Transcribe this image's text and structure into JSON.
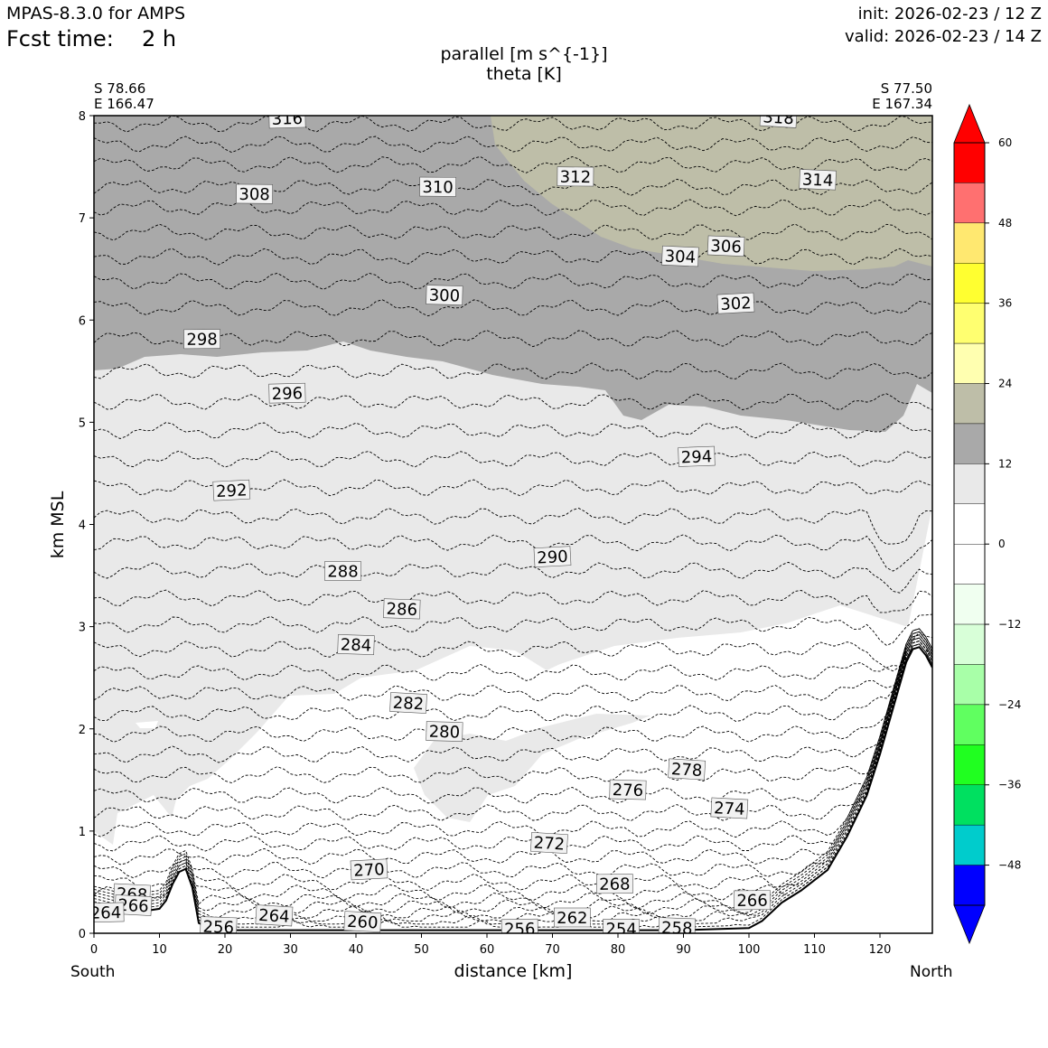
{
  "header": {
    "model": "MPAS-8.3.0 for AMPS",
    "fcst_label": "Fcst time:",
    "fcst_value": "2 h",
    "init": "init: 2026-02-23 / 12 Z",
    "valid": "valid: 2026-02-23 / 14 Z"
  },
  "chart_data": {
    "type": "cross-section",
    "title_line1": "parallel [m s^{-1}]",
    "title_line2": "theta [K]",
    "xlabel": "distance [km]",
    "ylabel": "km MSL",
    "xlim": [
      0,
      128
    ],
    "ylim": [
      0,
      8
    ],
    "x_ticks": [
      0,
      10,
      20,
      30,
      40,
      50,
      60,
      70,
      80,
      90,
      100,
      110,
      120
    ],
    "y_ticks": [
      0,
      1,
      2,
      3,
      4,
      5,
      6,
      7,
      8
    ],
    "left_end": {
      "lat": "S 78.66",
      "lon": "E 166.47",
      "direction": "South"
    },
    "right_end": {
      "lat": "S 77.50",
      "lon": "E 167.34",
      "direction": "North"
    },
    "colorbar": {
      "ticks": [
        60,
        48,
        36,
        24,
        12,
        0,
        -12,
        -24,
        -36,
        -48
      ],
      "tick_labels": [
        "60",
        "48",
        "36",
        "24",
        "12",
        "0",
        "−12",
        "−24",
        "−36",
        "−48"
      ],
      "levels": [
        60,
        54,
        48,
        42,
        36,
        30,
        24,
        18,
        12,
        6,
        0,
        -6,
        -12,
        -18,
        -24,
        -30,
        -36,
        -42,
        -48,
        -54
      ],
      "colors": [
        "#ff0000",
        "#ff7070",
        "#ffe870",
        "#ffff30",
        "#ffff70",
        "#ffffb0",
        "#bebea8",
        "#a9a9a9",
        "#e9e9e9",
        "#ffffff",
        "#ffffff",
        "#f0fff0",
        "#d8ffd8",
        "#a8ffa8",
        "#60ff60",
        "#20ff20",
        "#00e060",
        "#00cccc",
        "#0000ff"
      ],
      "over_color": "#ff0000",
      "under_color": "#0000ff"
    },
    "wind_regions": [
      {
        "value_range": [
          12,
          18
        ],
        "color": "#a9a9a9",
        "area": "upper troposphere above ~5.5 km"
      },
      {
        "value_range": [
          18,
          24
        ],
        "color": "#bebea8",
        "area": "x 60-128 km above ~6.5 km"
      },
      {
        "value_range": [
          6,
          12
        ],
        "color": "#e9e9e9",
        "area": "mid levels"
      },
      {
        "value_range": [
          0,
          6
        ],
        "color": "#ffffff",
        "area": "lower levels"
      }
    ],
    "terrain": {
      "x": [
        0,
        5,
        8,
        10,
        11,
        12,
        13,
        14,
        15,
        16,
        18,
        20,
        30,
        40,
        50,
        60,
        70,
        80,
        90,
        100,
        102,
        105,
        108,
        112,
        115,
        118,
        120,
        122,
        124,
        125,
        126,
        127,
        128
      ],
      "y": [
        0.28,
        0.2,
        0.22,
        0.24,
        0.32,
        0.48,
        0.6,
        0.63,
        0.45,
        0.1,
        0.04,
        0.03,
        0.03,
        0.03,
        0.03,
        0.03,
        0.03,
        0.03,
        0.03,
        0.05,
        0.12,
        0.3,
        0.42,
        0.62,
        0.95,
        1.35,
        1.75,
        2.2,
        2.65,
        2.78,
        2.8,
        2.72,
        2.6
      ]
    },
    "contour_labels": [
      {
        "value": "316",
        "x": 29.5,
        "y": 7.97
      },
      {
        "value": "318",
        "x": 104.5,
        "y": 7.98
      },
      {
        "value": "312",
        "x": 73.5,
        "y": 7.4
      },
      {
        "value": "314",
        "x": 110.5,
        "y": 7.37
      },
      {
        "value": "308",
        "x": 24.5,
        "y": 7.23
      },
      {
        "value": "310",
        "x": 52.5,
        "y": 7.3
      },
      {
        "value": "306",
        "x": 96.5,
        "y": 6.72
      },
      {
        "value": "304",
        "x": 89.5,
        "y": 6.62
      },
      {
        "value": "302",
        "x": 98,
        "y": 6.16
      },
      {
        "value": "300",
        "x": 53.5,
        "y": 6.24
      },
      {
        "value": "298",
        "x": 16.5,
        "y": 5.81
      },
      {
        "value": "296",
        "x": 29.5,
        "y": 5.28
      },
      {
        "value": "294",
        "x": 92,
        "y": 4.66
      },
      {
        "value": "292",
        "x": 21,
        "y": 4.33
      },
      {
        "value": "290",
        "x": 70,
        "y": 3.68
      },
      {
        "value": "288",
        "x": 38,
        "y": 3.54
      },
      {
        "value": "286",
        "x": 47,
        "y": 3.17
      },
      {
        "value": "284",
        "x": 40,
        "y": 2.82
      },
      {
        "value": "282",
        "x": 48,
        "y": 2.25
      },
      {
        "value": "280",
        "x": 53.5,
        "y": 1.97
      },
      {
        "value": "278",
        "x": 90.5,
        "y": 1.6
      },
      {
        "value": "276",
        "x": 81.5,
        "y": 1.4
      },
      {
        "value": "274",
        "x": 97,
        "y": 1.22
      },
      {
        "value": "272",
        "x": 69.5,
        "y": 0.88
      },
      {
        "value": "270",
        "x": 42,
        "y": 0.62
      },
      {
        "value": "268",
        "x": 79.5,
        "y": 0.48
      },
      {
        "value": "268",
        "x": 5.8,
        "y": 0.38
      },
      {
        "value": "266",
        "x": 6,
        "y": 0.27
      },
      {
        "value": "266",
        "x": 100.5,
        "y": 0.32
      },
      {
        "value": "264",
        "x": 1.8,
        "y": 0.2
      },
      {
        "value": "264",
        "x": 27.5,
        "y": 0.17
      },
      {
        "value": "262",
        "x": 73,
        "y": 0.15
      },
      {
        "value": "260",
        "x": 41,
        "y": 0.11
      },
      {
        "value": "258",
        "x": 89,
        "y": 0.05
      },
      {
        "value": "256",
        "x": 19,
        "y": 0.06
      },
      {
        "value": "256",
        "x": 65,
        "y": 0.04
      },
      {
        "value": "254",
        "x": 80.5,
        "y": 0.04
      }
    ]
  }
}
